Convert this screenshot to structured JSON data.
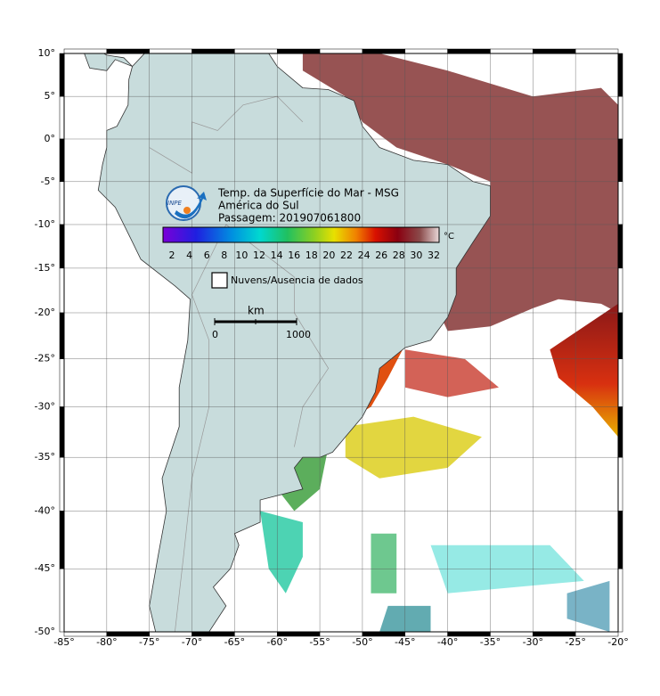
{
  "title": {
    "line1": "Temp. da Superfície do Mar - MSG",
    "line2": "América do Sul",
    "line3": "Passagem: 201907061800"
  },
  "logo_text": "INPE",
  "colorbar": {
    "unit": "°C",
    "labels": [
      "2",
      "4",
      "6",
      "8",
      "10",
      "12",
      "14",
      "16",
      "18",
      "20",
      "22",
      "24",
      "26",
      "28",
      "30",
      "32"
    ]
  },
  "legend": {
    "no_data": "Nuvens/Ausencia de dados"
  },
  "scale_bar": {
    "unit": "km",
    "start": "0",
    "end": "1000"
  },
  "axes": {
    "lat_labels": [
      "10°",
      "5°",
      "0°",
      "-5°",
      "-10°",
      "-15°",
      "-20°",
      "-25°",
      "-30°",
      "-35°",
      "-40°",
      "-45°",
      "-50°"
    ],
    "lon_labels": [
      "-85°",
      "-80°",
      "-75°",
      "-70°",
      "-65°",
      "-60°",
      "-55°",
      "-50°",
      "-45°",
      "-40°",
      "-35°",
      "-30°",
      "-25°",
      "-20°"
    ]
  }
}
